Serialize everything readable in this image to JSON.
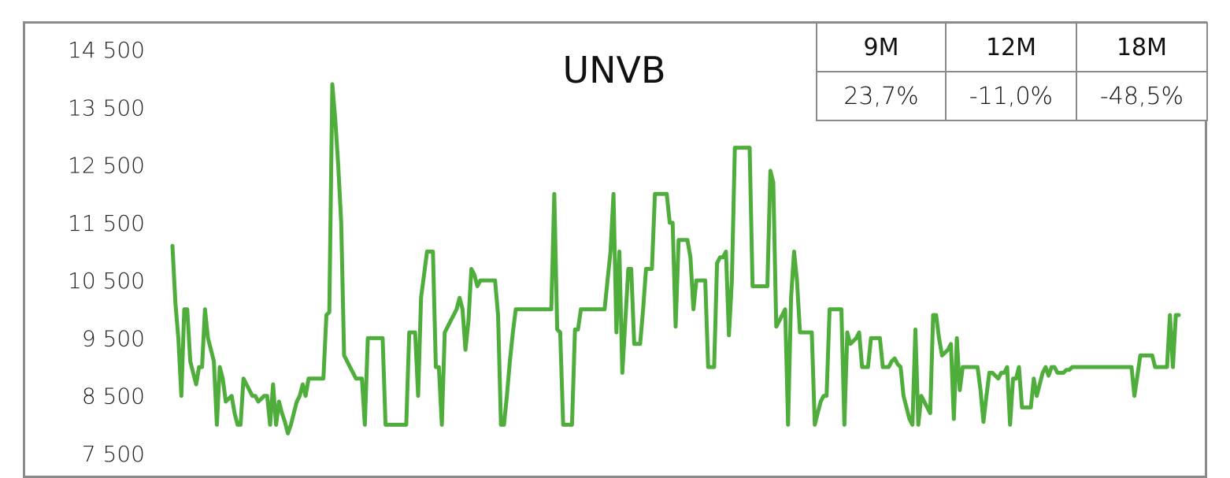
{
  "chart_data": {
    "type": "line",
    "title": "UNVB",
    "ylim": [
      7500,
      14500
    ],
    "yticks": [
      7500,
      8500,
      9500,
      10500,
      11500,
      12500,
      13500,
      14500
    ],
    "ytick_labels": [
      "7 500",
      "8 500",
      "9 500",
      "10 500",
      "11 500",
      "12 500",
      "13 500",
      "14 500"
    ],
    "grid": false,
    "series": [
      {
        "color": "#4fad3c",
        "values": [
          11100,
          10100,
          9500,
          8500,
          10000,
          10000,
          9100,
          8900,
          8700,
          9000,
          9000,
          10000,
          9500,
          9300,
          9100,
          8000,
          9000,
          8800,
          8400,
          8450,
          8500,
          8200,
          8000,
          8000,
          8800,
          8700,
          8600,
          8500,
          8500,
          8400,
          8450,
          8500,
          8500,
          8000,
          8700,
          8000,
          8400,
          8200,
          8050,
          7850,
          8000,
          8200,
          8400,
          8500,
          8700,
          8500,
          8800,
          8800,
          8800,
          8800,
          8800,
          8800,
          9900,
          9950,
          13900,
          13300,
          12500,
          11500,
          9200,
          9100,
          9000,
          8900,
          8800,
          8800,
          8800,
          8000,
          9500,
          9500,
          9500,
          9500,
          9500,
          9500,
          8000,
          8000,
          8000,
          8000,
          8000,
          8000,
          8000,
          8000,
          9600,
          9600,
          9600,
          8500,
          10200,
          10600,
          11000,
          11000,
          11000,
          9000,
          9000,
          8000,
          9600,
          9700,
          9800,
          9900,
          10000,
          10200,
          10000,
          9300,
          9800,
          10700,
          10600,
          10400,
          10500,
          10500,
          10500,
          10500,
          10500,
          10500,
          9900,
          8000,
          8000,
          8500,
          9100,
          9600,
          10000,
          10000,
          10000,
          10000,
          10000,
          10000,
          10000,
          10000,
          10000,
          10000,
          10000,
          10000,
          10000,
          12000,
          9650,
          9600,
          8000,
          8000,
          8000,
          8000,
          9650,
          9650,
          10000,
          10000,
          10000,
          10000,
          10000,
          10000,
          10000,
          10000,
          10000,
          10500,
          11000,
          12000,
          9600,
          11000,
          8900,
          9800,
          10700,
          10700,
          9400,
          9400,
          9400,
          10000,
          10700,
          10700,
          10700,
          12000,
          12000,
          12000,
          12000,
          12000,
          11500,
          11500,
          9700,
          11200,
          11200,
          11200,
          11200,
          10900,
          10000,
          10500,
          10500,
          10500,
          10500,
          9000,
          9000,
          9000,
          10800,
          10900,
          10900,
          11000,
          9550,
          10500,
          12800,
          12800,
          12800,
          12800,
          12800,
          12800,
          10400,
          10400,
          10400,
          10400,
          10400,
          10400,
          12400,
          12200,
          9700,
          9800,
          9900,
          10000,
          8000,
          10200,
          11000,
          10500,
          9600,
          9600,
          9600,
          9600,
          9600,
          8000,
          8200,
          8400,
          8500,
          8500,
          10000,
          10000,
          10000,
          10000,
          10000,
          8000,
          9600,
          9400,
          9450,
          9500,
          9600,
          9000,
          9000,
          9000,
          9500,
          9500,
          9500,
          9500,
          9000,
          9000,
          9000,
          9100,
          9150,
          9050,
          9000,
          8500,
          8300,
          8100,
          8000,
          9650,
          8000,
          8500,
          8400,
          8300,
          8200,
          9900,
          9900,
          9500,
          9200,
          9250,
          9300,
          9400,
          8100,
          9500,
          8600,
          9000,
          9000,
          9000,
          9000,
          9000,
          9000,
          8600,
          8050,
          8500,
          8900,
          8900,
          8850,
          8800,
          8900,
          8900,
          9000,
          8000,
          8800,
          8800,
          9000,
          8300,
          8300,
          8300,
          8300,
          8800,
          8500,
          8700,
          8900,
          9000,
          8850,
          9000,
          9000,
          8900,
          8900,
          8900,
          8950,
          8950,
          9000,
          9000,
          9000,
          9000,
          9000,
          9000,
          9000,
          9000,
          9000,
          9000,
          9000,
          9000,
          9000,
          9000,
          9000,
          9000,
          9000,
          9000,
          9000,
          9000,
          9000,
          8500,
          8850,
          9200,
          9200,
          9200,
          9200,
          9200,
          9000,
          9000,
          9000,
          9000,
          9000,
          9900,
          9000,
          9900,
          9900
        ]
      }
    ]
  },
  "performance_table": {
    "headers": [
      "9M",
      "12M",
      "18M"
    ],
    "values": [
      "23,7%",
      "-11,0%",
      "-48,5%"
    ]
  },
  "colors": {
    "line": "#4fad3c",
    "frame": "#8a8a8a",
    "text": "#111111"
  }
}
